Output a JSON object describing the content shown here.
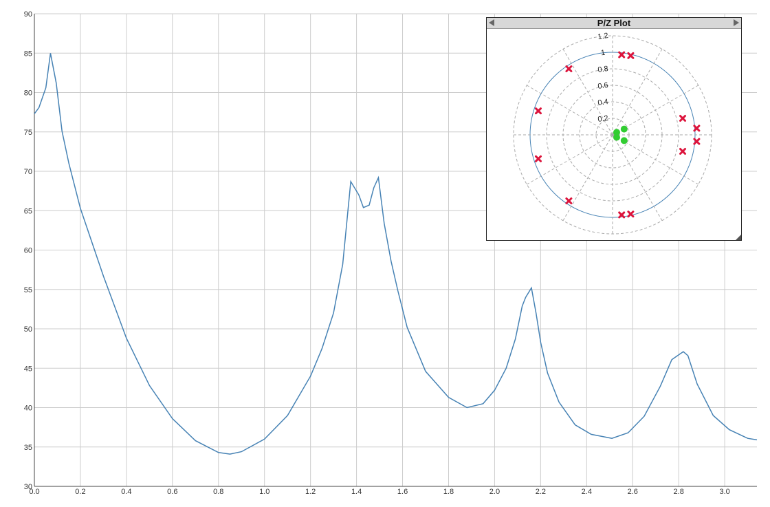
{
  "chart_data": [
    {
      "type": "line",
      "xlim": [
        0,
        3.14
      ],
      "ylim": [
        30,
        90
      ],
      "x_ticks": [
        "0.0",
        "0.2",
        "0.4",
        "0.6",
        "0.8",
        "1.0",
        "1.2",
        "1.4",
        "1.6",
        "1.8",
        "2.0",
        "2.2",
        "2.4",
        "2.6",
        "2.8",
        "3.0"
      ],
      "y_ticks": [
        "30",
        "35",
        "40",
        "45",
        "50",
        "55",
        "60",
        "65",
        "70",
        "75",
        "80",
        "85",
        "90"
      ],
      "grid": true,
      "line_color": "#4682b4",
      "series": [
        {
          "x": [
            0,
            0.02,
            0.05,
            0.07,
            0.095,
            0.12,
            0.15,
            0.2,
            0.3,
            0.4,
            0.5,
            0.6,
            0.7,
            0.8,
            0.85,
            0.9,
            1.0,
            1.1,
            1.2,
            1.25,
            1.3,
            1.34,
            1.375,
            1.41,
            1.43,
            1.455,
            1.475,
            1.495,
            1.52,
            1.55,
            1.58,
            1.62,
            1.7,
            1.8,
            1.88,
            1.95,
            2.0,
            2.05,
            2.09,
            2.12,
            2.135,
            2.16,
            2.18,
            2.2,
            2.23,
            2.28,
            2.35,
            2.42,
            2.51,
            2.58,
            2.65,
            2.72,
            2.77,
            2.805,
            2.82,
            2.84,
            2.88,
            2.95,
            3.02,
            3.1,
            3.14
          ],
          "y": [
            77.3,
            78.1,
            80.6,
            85.0,
            81.2,
            75.1,
            71.0,
            65.3,
            56.7,
            48.8,
            42.8,
            38.6,
            35.8,
            34.3,
            34.1,
            34.4,
            36.0,
            39.0,
            44.0,
            47.5,
            52.0,
            58.2,
            68.7,
            67.0,
            65.4,
            65.7,
            67.9,
            69.2,
            63.4,
            58.6,
            54.8,
            50.2,
            44.6,
            41.3,
            40.0,
            40.5,
            42.2,
            45.0,
            48.7,
            52.9,
            54.0,
            55.2,
            52.0,
            48.3,
            44.4,
            40.7,
            37.8,
            36.6,
            36.1,
            36.8,
            38.9,
            42.7,
            46.1,
            46.8,
            47.1,
            46.6,
            43.0,
            39.0,
            37.2,
            36.1,
            35.9
          ]
        }
      ]
    },
    {
      "type": "scatter",
      "title": "P/Z Plot",
      "radial_labels": [
        "0.2",
        "0.4",
        "0.6",
        "0.8",
        "1",
        "1.2"
      ],
      "unit_circle_color": "#4682b4",
      "pole_color": "#dc143c",
      "zero_color": "#32cd32",
      "poles": [
        {
          "re": 0.11,
          "im": 0.97
        },
        {
          "re": 0.22,
          "im": 0.96
        },
        {
          "re": 0.11,
          "im": -0.97
        },
        {
          "re": 0.22,
          "im": -0.96
        },
        {
          "re": -0.53,
          "im": 0.8
        },
        {
          "re": -0.53,
          "im": -0.8
        },
        {
          "re": -0.9,
          "im": 0.29
        },
        {
          "re": -0.9,
          "im": -0.29
        },
        {
          "re": 0.85,
          "im": 0.2
        },
        {
          "re": 0.85,
          "im": -0.2
        },
        {
          "re": 1.02,
          "im": 0.08
        },
        {
          "re": 1.02,
          "im": -0.08
        }
      ],
      "zeros": [
        {
          "re": 0.14,
          "im": 0.07
        },
        {
          "re": 0.14,
          "im": -0.07
        },
        {
          "re": 0.05,
          "im": 0.03
        },
        {
          "re": 0.05,
          "im": -0.03
        }
      ]
    }
  ]
}
